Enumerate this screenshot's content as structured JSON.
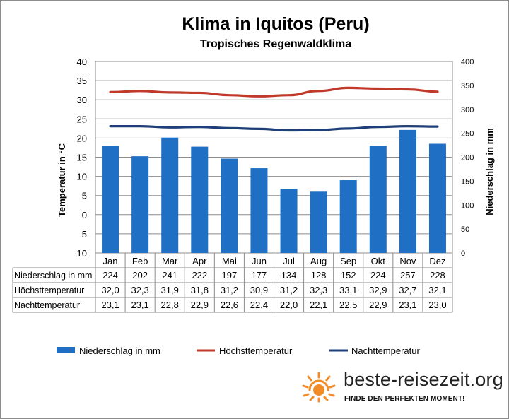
{
  "header": {
    "title": "Klima in Iquitos (Peru)",
    "subtitle": "Tropisches Regenwaldklima"
  },
  "colors": {
    "bar": "#1f6fc4",
    "max_line": "#c0392b",
    "min_line": "#1f3f7a",
    "logo_sun": "#f28c28"
  },
  "chart_data": {
    "type": "bar",
    "categories": [
      "Jan",
      "Feb",
      "Mar",
      "Apr",
      "Mai",
      "Jun",
      "Jul",
      "Aug",
      "Sep",
      "Okt",
      "Nov",
      "Dez"
    ],
    "series": [
      {
        "name": "Niederschlag in mm",
        "type": "bar",
        "axis": "right",
        "values": [
          224,
          202,
          241,
          222,
          197,
          177,
          134,
          128,
          152,
          224,
          257,
          228
        ]
      },
      {
        "name": "Höchsttemperatur",
        "type": "line",
        "axis": "left",
        "values": [
          32.0,
          32.3,
          31.9,
          31.8,
          31.2,
          30.9,
          31.2,
          32.3,
          33.1,
          32.9,
          32.7,
          32.1
        ]
      },
      {
        "name": "Nachttemperatur",
        "type": "line",
        "axis": "left",
        "values": [
          23.1,
          23.1,
          22.8,
          22.9,
          22.6,
          22.4,
          22.0,
          22.1,
          22.5,
          22.9,
          23.1,
          23.0
        ]
      }
    ],
    "ylabel_left": "Temperatur in °C",
    "ylabel_right": "Niederschlag in mm",
    "ylim_left": [
      -10,
      40
    ],
    "ylim_right": [
      0,
      400
    ],
    "yticks_left": [
      "40",
      "35",
      "30",
      "25",
      "20",
      "15",
      "10",
      "5",
      "0",
      "-5",
      "-10"
    ],
    "yticks_right": [
      "400",
      "350",
      "300",
      "250",
      "200",
      "150",
      "100",
      "50",
      "0"
    ],
    "grid": true,
    "legend": "bottom",
    "table": {
      "rows": [
        {
          "label": "Niederschlag in mm",
          "values": [
            "224",
            "202",
            "241",
            "222",
            "197",
            "177",
            "134",
            "128",
            "152",
            "224",
            "257",
            "228"
          ]
        },
        {
          "label": "Höchsttemperatur",
          "values": [
            "32,0",
            "32,3",
            "31,9",
            "31,8",
            "31,2",
            "30,9",
            "31,2",
            "32,3",
            "33,1",
            "32,9",
            "32,7",
            "32,1"
          ]
        },
        {
          "label": "Nachttemperatur",
          "values": [
            "23,1",
            "23,1",
            "22,8",
            "22,9",
            "22,6",
            "22,4",
            "22,0",
            "22,1",
            "22,5",
            "22,9",
            "23,1",
            "23,0"
          ]
        }
      ]
    }
  },
  "branding": {
    "site": "beste-reisezeit.org",
    "tagline": "FINDE DEN PERFEKTEN MOMENT!"
  }
}
